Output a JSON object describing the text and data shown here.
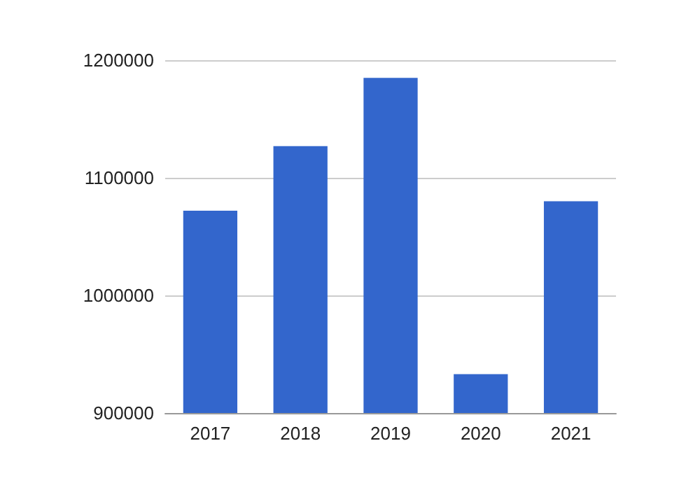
{
  "chart_data": {
    "type": "bar",
    "categories": [
      "2017",
      "2018",
      "2019",
      "2020",
      "2021"
    ],
    "values": [
      1072000,
      1127000,
      1185000,
      933000,
      1080000
    ],
    "color": "#3366cc",
    "ylim": [
      900000,
      1200000
    ],
    "yticks": [
      900000,
      1000000,
      1100000,
      1200000
    ],
    "grid": "y"
  }
}
